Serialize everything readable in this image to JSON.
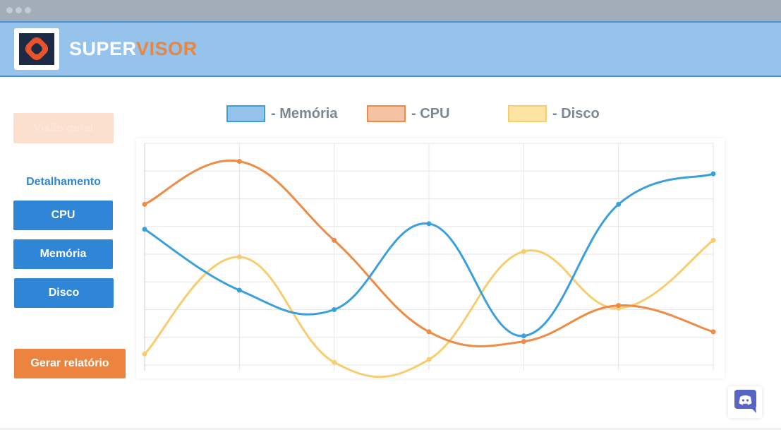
{
  "app": {
    "brand_part1": "SUPER",
    "brand_part2": "VISOR",
    "logo_icon": "supervisor-logo-icon",
    "colors": {
      "header": "#95c3ec",
      "brand_accent": "#e8853e",
      "primary_button": "#2f86d6",
      "report_button": "#ec8440"
    }
  },
  "sidebar": {
    "overview_label": "Visão geral",
    "detail_heading": "Detalhamento",
    "items": [
      {
        "label": "CPU"
      },
      {
        "label": "Memória"
      },
      {
        "label": "Disco"
      }
    ],
    "report_label": "Gerar relatório"
  },
  "legend": [
    {
      "label": "- Memória",
      "color": "#3aa0dc",
      "fill": "#95c3ec"
    },
    {
      "label": "- CPU",
      "color": "#ee8b45",
      "fill": "#f4c3a3"
    },
    {
      "label": "- Disco",
      "color": "#f8cd6d",
      "fill": "#fce4a4"
    }
  ],
  "chart_data": {
    "type": "line",
    "x": [
      0,
      1,
      2,
      3,
      4,
      5,
      6
    ],
    "ylim": [
      0,
      8
    ],
    "grid": true,
    "series": [
      {
        "name": "Memória",
        "color": "#3aa0dc",
        "values": [
          4.9,
          2.7,
          2.0,
          5.1,
          1.05,
          5.8,
          6.9
        ]
      },
      {
        "name": "CPU",
        "color": "#ee8b45",
        "values": [
          5.8,
          7.35,
          4.5,
          1.2,
          0.85,
          2.15,
          1.2
        ]
      },
      {
        "name": "Disco",
        "color": "#f8cd6d",
        "values": [
          0.4,
          3.9,
          0.1,
          0.2,
          4.1,
          2.05,
          4.5
        ]
      }
    ]
  },
  "chat_widget": {
    "icon": "discord-icon"
  }
}
